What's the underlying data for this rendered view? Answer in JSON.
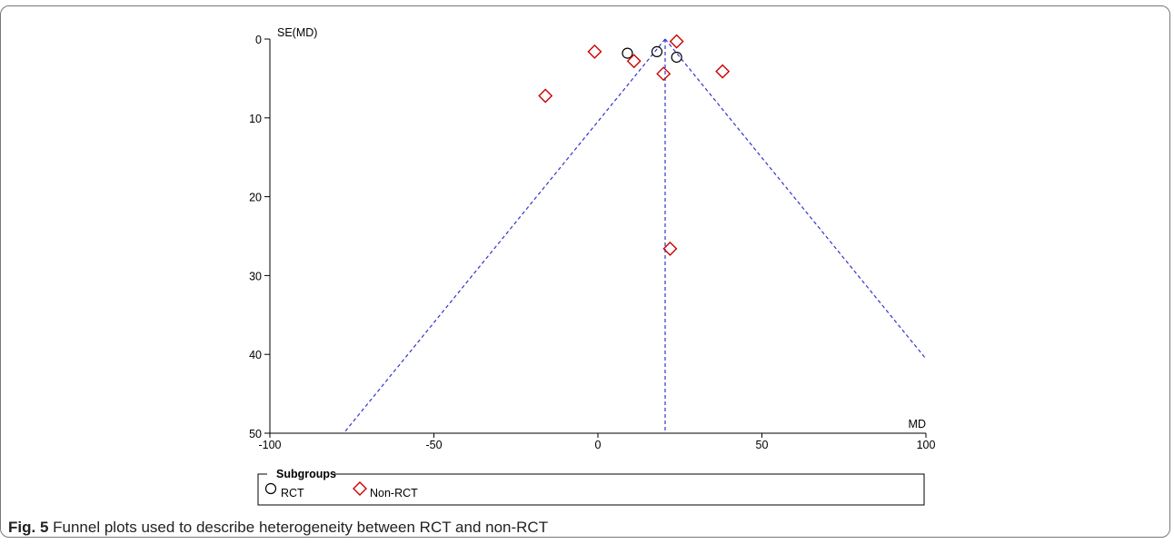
{
  "chart_data": {
    "type": "scatter",
    "xlabel": "MD",
    "ylabel": "SE(MD)",
    "xlim": [
      -100,
      100
    ],
    "ylim": [
      0,
      50
    ],
    "y_inverted": true,
    "x_ticks": [
      -100,
      -50,
      0,
      50,
      100
    ],
    "y_ticks": [
      0,
      10,
      20,
      30,
      40,
      50
    ],
    "x_tick_labels": [
      "-100",
      "-50",
      "0",
      "50",
      "100"
    ],
    "y_tick_labels": [
      "0",
      "10",
      "20",
      "30",
      "40",
      "50"
    ],
    "pooled_md": 20.5,
    "funnel_line_color": "#3333cc",
    "series": [
      {
        "name": "RCT",
        "marker": "circle",
        "color": "#000000",
        "points": [
          {
            "x": 9,
            "y": 1.8
          },
          {
            "x": 18,
            "y": 1.6
          },
          {
            "x": 24,
            "y": 2.3
          }
        ]
      },
      {
        "name": "Non-RCT",
        "marker": "diamond",
        "color": "#cc0000",
        "points": [
          {
            "x": -1,
            "y": 1.6
          },
          {
            "x": 11,
            "y": 2.8
          },
          {
            "x": 24,
            "y": 0.3
          },
          {
            "x": 20,
            "y": 4.4
          },
          {
            "x": 38,
            "y": 4.1
          },
          {
            "x": -16,
            "y": 7.2
          },
          {
            "x": 22,
            "y": 26.6
          }
        ]
      }
    ],
    "legend": {
      "title": "Subgroups",
      "position": "bottom"
    },
    "grid": false
  },
  "caption": {
    "label": "Fig. 5",
    "text": "Funnel plots used to describe heterogeneity between RCT and non-RCT"
  }
}
